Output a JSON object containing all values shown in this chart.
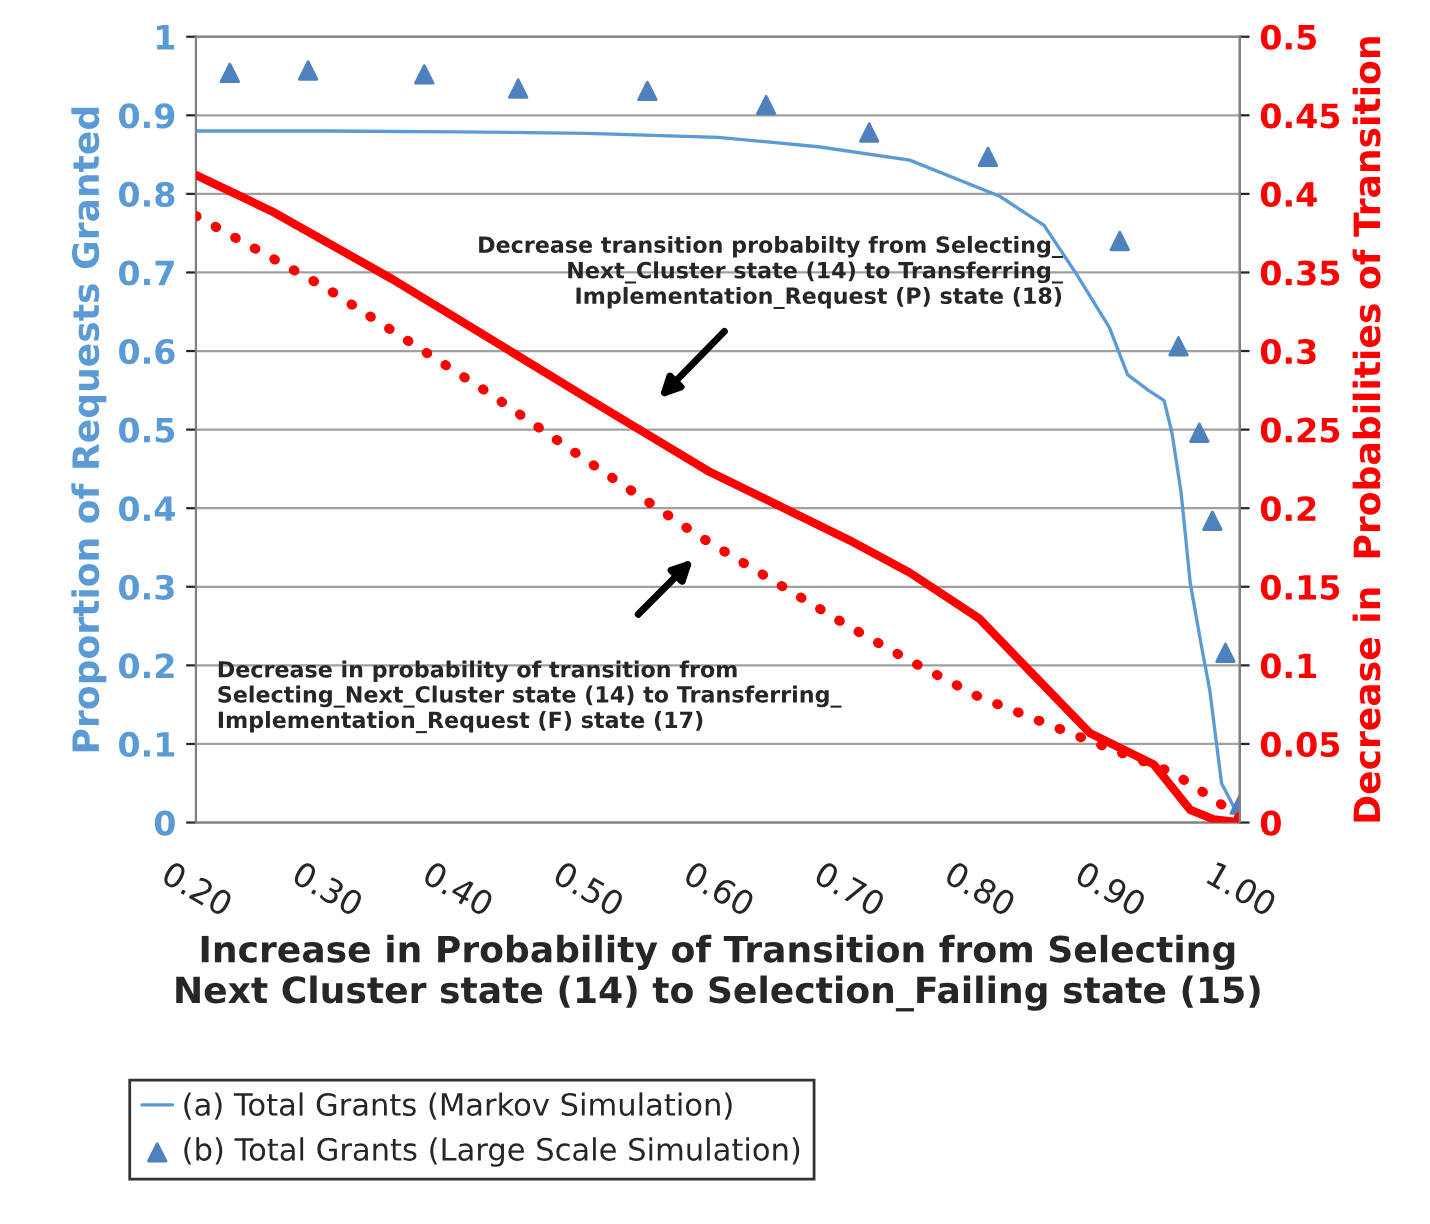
{
  "chart_data": {
    "type": "line",
    "xlabel": "Increase in Probability of Transition from Selecting\nNext Cluster state (14) to Selection_Failing state (15)",
    "ylabel": "Proportion of Requests Granted",
    "y2label": "Decrease in  Probabilities of Transition",
    "xlim": [
      0.2,
      1.0
    ],
    "xticks": [
      {
        "value": 0.2,
        "label": "0.20"
      },
      {
        "value": 0.3,
        "label": "0.30"
      },
      {
        "value": 0.4,
        "label": "0.40"
      },
      {
        "value": 0.5,
        "label": "0.50"
      },
      {
        "value": 0.6,
        "label": "0.60"
      },
      {
        "value": 0.7,
        "label": "0.70"
      },
      {
        "value": 0.8,
        "label": "0.80"
      },
      {
        "value": 0.9,
        "label": "0.90"
      },
      {
        "value": 1.0,
        "label": "1.00"
      }
    ],
    "ylim": [
      0,
      1
    ],
    "yticks": [
      0,
      0.1,
      0.2,
      0.3,
      0.4,
      0.5,
      0.6,
      0.7,
      0.8,
      0.9,
      1
    ],
    "y2lim": [
      0,
      0.5
    ],
    "y2ticks": [
      0,
      0.05,
      0.1,
      0.15,
      0.2,
      0.25,
      0.3,
      0.35,
      0.4,
      0.45,
      0.5
    ],
    "grid": "y",
    "legend": "bottom",
    "series": [
      {
        "name": "(a) Total Grants (Markov Simulation)",
        "color": "#5b9bd5",
        "marker": "none",
        "line_style": "solid",
        "x": [
          0.2,
          0.3,
          0.4,
          0.5,
          0.6,
          0.677,
          0.747,
          0.816,
          0.85,
          0.874,
          0.9,
          0.914,
          0.93,
          0.942,
          0.948,
          0.955,
          0.962,
          0.97,
          0.977,
          0.986,
          1.0
        ],
        "values": [
          0.88,
          0.88,
          0.879,
          0.877,
          0.872,
          0.86,
          0.843,
          0.797,
          0.76,
          0.7,
          0.63,
          0.57,
          0.55,
          0.537,
          0.496,
          0.42,
          0.305,
          0.23,
          0.168,
          0.05,
          0.005
        ]
      },
      {
        "name": "(b) Total Grants (Large Scale Simulation)",
        "type": "scatter",
        "color": "#4f81bd",
        "marker": "triangle",
        "x": [
          0.226,
          0.286,
          0.375,
          0.447,
          0.546,
          0.637,
          0.716,
          0.807,
          0.908,
          0.953,
          0.969,
          0.979,
          0.989,
          1.0
        ],
        "values": [
          0.954,
          0.957,
          0.952,
          0.934,
          0.931,
          0.913,
          0.878,
          0.847,
          0.74,
          0.606,
          0.496,
          0.384,
          0.216,
          0.023
        ]
      },
      {
        "axis": "y2",
        "color": "#ff0000",
        "marker": "none",
        "line_style": "solid",
        "x": [
          0.2,
          0.258,
          0.35,
          0.5,
          0.594,
          0.7,
          0.747,
          0.8,
          0.885,
          0.934,
          0.962,
          0.98,
          1.0
        ],
        "values": [
          0.412,
          0.389,
          0.346,
          0.27,
          0.223,
          0.18,
          0.159,
          0.13,
          0.057,
          0.037,
          0.008,
          0.002,
          0.0
        ]
      },
      {
        "axis": "y2",
        "color": "#ff0000",
        "marker": "none",
        "line_style": "dotted",
        "x": [
          0.2,
          0.3,
          0.425,
          0.5,
          0.586,
          0.7,
          0.747,
          0.8,
          0.885,
          0.948,
          0.98,
          1.0
        ],
        "values": [
          0.386,
          0.34,
          0.273,
          0.23,
          0.182,
          0.125,
          0.103,
          0.08,
          0.052,
          0.032,
          0.015,
          0.003
        ]
      }
    ],
    "annotations": [
      "Decrease transition probabilty from Selecting_\nNext_Cluster state (14) to Transferring_\nImplementation_Request (P) state (18)",
      "Decrease in probability of transition from\nSelecting_Next_Cluster state (14) to Transferring_\nImplementation_Request (F) state (17)"
    ]
  }
}
